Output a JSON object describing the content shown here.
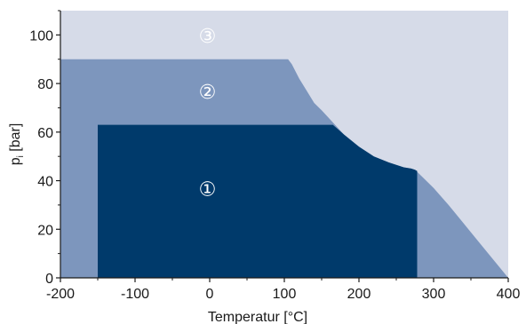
{
  "chart_data": {
    "type": "area",
    "xlabel": "Temperatur [°C]",
    "ylabel": "p",
    "ylabel_subscript": "i",
    "ylabel_unit": " [bar]",
    "xlim": [
      -200,
      400
    ],
    "ylim": [
      0,
      110
    ],
    "x_ticks": [
      -200,
      -100,
      0,
      100,
      200,
      300,
      400
    ],
    "x_tick_labels": [
      "-200",
      "-100",
      "0",
      "100",
      "200",
      "300",
      "400"
    ],
    "y_ticks": [
      0,
      20,
      40,
      60,
      80,
      100
    ],
    "y_tick_labels": [
      "0",
      "20",
      "40",
      "60",
      "80",
      "100"
    ],
    "grid": false,
    "series": [
      {
        "name": "③",
        "color": "#d6dbe8",
        "label_at": {
          "x": -3,
          "y": 99
        },
        "label_color": "#ffffff",
        "x": [
          -200,
          400
        ],
        "y": [
          110,
          110
        ]
      },
      {
        "name": "②",
        "color": "#7d96bd",
        "label_at": {
          "x": -3,
          "y": 76
        },
        "label_color": "#ffffff",
        "x": [
          -200,
          105,
          110,
          120,
          130,
          140,
          150,
          165,
          180,
          200,
          220,
          240,
          260,
          270,
          275,
          280,
          300,
          320,
          340,
          360,
          380,
          400
        ],
        "y": [
          90,
          90,
          88,
          82,
          77,
          72,
          69,
          64,
          59,
          54,
          50,
          47.5,
          45.5,
          45,
          44.5,
          43,
          37,
          30,
          22.5,
          15,
          7.5,
          0
        ]
      },
      {
        "name": "①",
        "color": "#003a6b",
        "label_at": {
          "x": -3,
          "y": 36
        },
        "label_color": "#ffffff",
        "x": [
          -150,
          165,
          180,
          200,
          220,
          240,
          260,
          270,
          275,
          278,
          278
        ],
        "y": [
          63,
          63,
          59,
          54,
          50,
          47.5,
          45.5,
          45,
          44.5,
          44,
          0
        ]
      }
    ]
  }
}
